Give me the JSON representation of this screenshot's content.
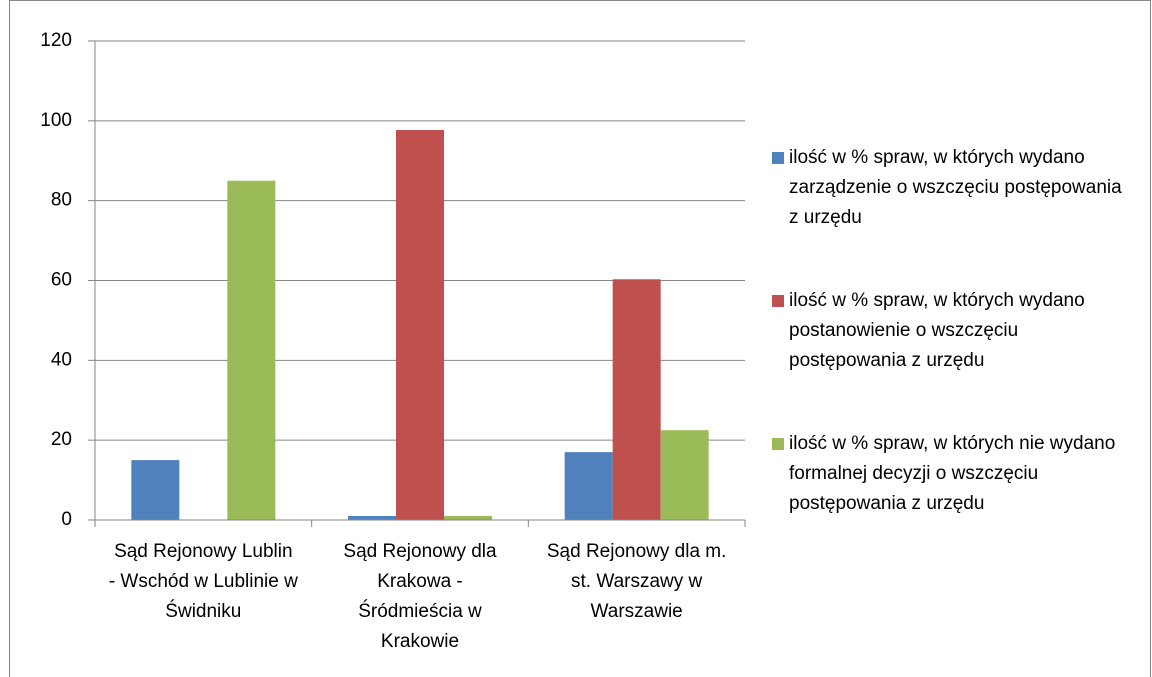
{
  "chart_data": {
    "type": "bar",
    "categories": [
      "Sąd Rejonowy Lublin - Wschód w Lublinie w Świdniku",
      "Sąd Rejonowy dla Krakowa - Śródmieścia w Krakowie",
      "Sąd Rejonowy dla m. st. Warszawy w Warszawie"
    ],
    "series": [
      {
        "name": "ilość w % spraw, w których wydano zarządzenie o wszczęciu postępowania z urzędu",
        "color": "#4f81bd",
        "values": [
          15,
          1,
          17
        ]
      },
      {
        "name": "ilość w % spraw, w których wydano postanowienie o wszczęciu postępowania z urzędu",
        "color": "#c0504d",
        "values": [
          0,
          97.7,
          60.3
        ]
      },
      {
        "name": "ilość w % spraw, w których nie wydano formalnej decyzji o wszczęciu postępowania z urzędu",
        "color": "#9bbb59",
        "values": [
          85,
          1,
          22.5
        ]
      }
    ],
    "ylim": [
      0,
      120
    ],
    "yticks": [
      0,
      20,
      40,
      60,
      80,
      100,
      120
    ],
    "grid": true,
    "legend": "right"
  }
}
